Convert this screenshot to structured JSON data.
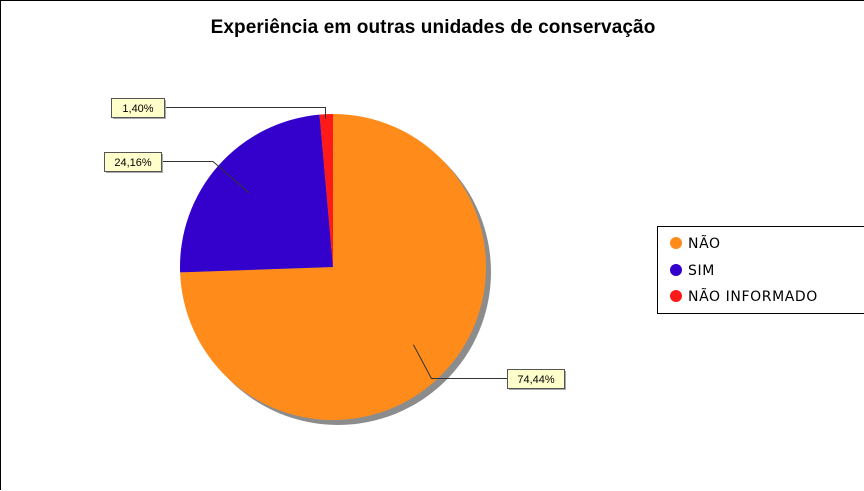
{
  "chart_data": {
    "type": "pie",
    "title": "Experiência em outras unidades de conservação",
    "slices": [
      {
        "name": "NÃO",
        "value": 74.44,
        "label": "74,44%",
        "color": "#FF8C1A"
      },
      {
        "name": "SIM",
        "value": 24.16,
        "label": "24,16%",
        "color": "#3300CC"
      },
      {
        "name": "NÃO INFORMADO",
        "value": 1.4,
        "label": "1,40%",
        "color": "#FF1A1A"
      }
    ],
    "start_angle": "12 o'clock",
    "direction": "clockwise",
    "legend_position": "right",
    "label_box_color": "#FFFFCC",
    "shadow": true
  }
}
